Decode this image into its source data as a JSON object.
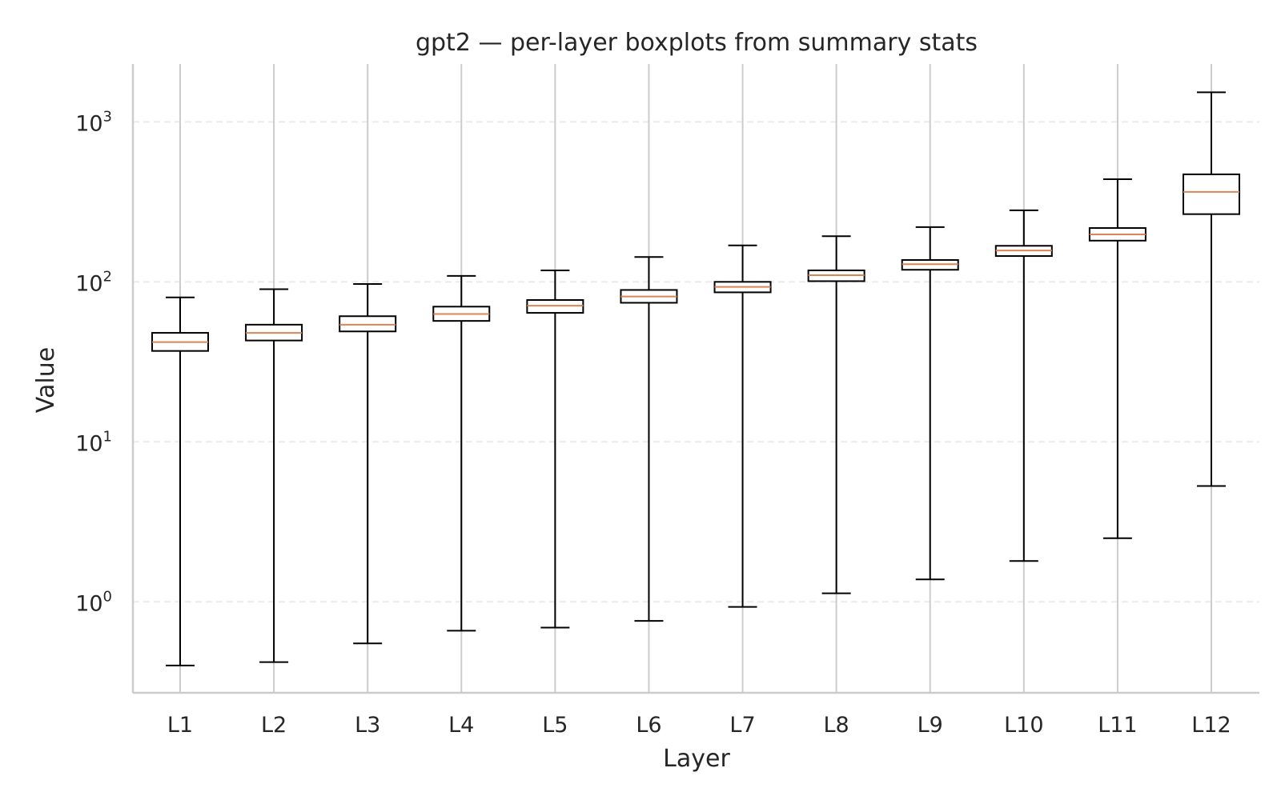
{
  "chart_data": {
    "type": "boxplot",
    "title": "gpt2 — per-layer boxplots from summary stats",
    "xlabel": "Layer",
    "ylabel": "Value",
    "y_scale": "log",
    "ylim": [
      0.27,
      2300
    ],
    "y_ticks": [
      {
        "value": 1,
        "base": "10",
        "exp": "0"
      },
      {
        "value": 10,
        "base": "10",
        "exp": "1"
      },
      {
        "value": 100,
        "base": "10",
        "exp": "2"
      },
      {
        "value": 1000,
        "base": "10",
        "exp": "3"
      }
    ],
    "grid": {
      "x": true,
      "y": true
    },
    "colors": {
      "box": "#000000",
      "median": "#dd8452",
      "grid": "#cccccc",
      "grid_y": "#ebebeb",
      "spine": "#cccccc"
    },
    "categories": [
      "L1",
      "L2",
      "L3",
      "L4",
      "L5",
      "L6",
      "L7",
      "L8",
      "L9",
      "L10",
      "L11",
      "L12"
    ],
    "whisker_low": [
      0.4,
      0.42,
      0.55,
      0.66,
      0.69,
      0.76,
      0.93,
      1.13,
      1.38,
      1.8,
      2.5,
      5.3
    ],
    "q1": [
      37,
      43,
      49,
      57,
      64,
      74,
      86,
      101,
      119,
      145,
      181,
      265
    ],
    "median": [
      42,
      48,
      54,
      63,
      71,
      81,
      93,
      110,
      129,
      157,
      198,
      365
    ],
    "q3": [
      48,
      54,
      61,
      70,
      77,
      89,
      100,
      118,
      137,
      168,
      217,
      470
    ],
    "whisker_high": [
      80,
      90,
      97,
      109,
      118,
      143,
      169,
      193,
      220,
      280,
      438,
      1530
    ]
  }
}
